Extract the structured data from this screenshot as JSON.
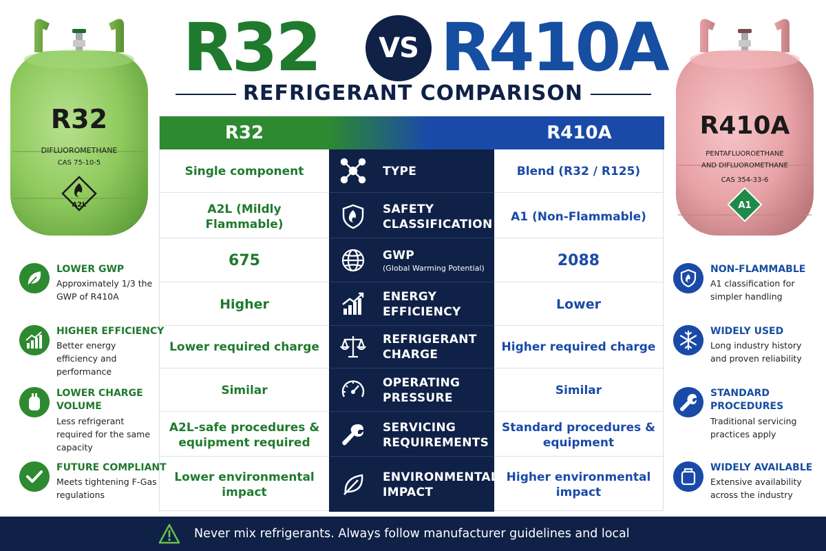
{
  "header": {
    "left_title": "R32",
    "vs": "VS",
    "right_title": "R410A",
    "subtitle": "REFRIGERANT COMPARISON"
  },
  "cylinders": {
    "left": {
      "label": "R32",
      "chemical": "DIFLUOROMETHANE",
      "cas": "CAS 75-10-5",
      "hazard": "A2L",
      "color": "#8fca5e"
    },
    "right": {
      "label": "R410A",
      "chemical_line1": "PENTAFLUOROETHANE",
      "chemical_line2": "AND DIFLUOROMETHANE",
      "cas": "CAS 354-33-6",
      "hazard": "A1",
      "color": "#e8a4a8"
    }
  },
  "table": {
    "left_header": "R32",
    "right_header": "R410A",
    "rows": [
      {
        "icon": "molecule-icon",
        "label1": "TYPE",
        "label2": "",
        "sub": "",
        "left": "Single component",
        "right": "Blend (R32 / R125)"
      },
      {
        "icon": "shield-icon",
        "label1": "SAFETY",
        "label2": "CLASSIFICATION",
        "sub": "",
        "left": "A2L (Mildly Flammable)",
        "right": "A1 (Non-Flammable)"
      },
      {
        "icon": "globe-icon",
        "label1": "GWP",
        "label2": "",
        "sub": "(Global Warming Potential)",
        "left": "675",
        "right": "2088"
      },
      {
        "icon": "bar-chart-icon",
        "label1": "ENERGY",
        "label2": "EFFICIENCY",
        "sub": "",
        "left": "Higher",
        "right": "Lower"
      },
      {
        "icon": "scale-icon",
        "label1": "REFRIGERANT",
        "label2": "CHARGE",
        "sub": "",
        "left": "Lower required charge",
        "right": "Higher required charge"
      },
      {
        "icon": "gauge-icon",
        "label1": "OPERATING",
        "label2": "PRESSURE",
        "sub": "",
        "left": "Similar",
        "right": "Similar"
      },
      {
        "icon": "wrench-icon",
        "label1": "SERVICING",
        "label2": "REQUIREMENTS",
        "sub": "",
        "left": "A2L-safe procedures & equipment required",
        "right": "Standard procedures & equipment"
      },
      {
        "icon": "leaf-icon",
        "label1": "ENVIRONMENTAL",
        "label2": "IMPACT",
        "sub": "",
        "left": "Lower environmental impact",
        "right": "Higher environmental impact"
      }
    ]
  },
  "left_features": [
    {
      "icon": "leaf-icon",
      "title": "LOWER GWP",
      "desc": "Approximately 1/3 the GWP of R410A"
    },
    {
      "icon": "bar-chart-icon",
      "title": "HIGHER EFFICIENCY",
      "desc": "Better energy efficiency and performance"
    },
    {
      "icon": "cylinder-icon",
      "title": "LOWER CHARGE VOLUME",
      "desc": "Less refrigerant required for the same capacity"
    },
    {
      "icon": "checkmark-icon",
      "title": "FUTURE COMPLIANT",
      "desc": "Meets tightening F-Gas regulations"
    }
  ],
  "right_features": [
    {
      "icon": "shield-icon",
      "title": "NON-FLAMMABLE",
      "desc": "A1 classification for simpler handling"
    },
    {
      "icon": "snowflake-icon",
      "title": "WIDELY USED",
      "desc": "Long industry history and proven reliability"
    },
    {
      "icon": "wrench-icon",
      "title": "STANDARD PROCEDURES",
      "desc": "Traditional servicing practices apply"
    },
    {
      "icon": "cylinder-icon",
      "title": "WIDELY AVAILABLE",
      "desc": "Extensive availability across the industry"
    }
  ],
  "footer": {
    "icon": "warning-icon",
    "text": "Never mix refrigerants. Always follow manufacturer guidelines and local regulations."
  },
  "colors": {
    "green": "#2d8a30",
    "blue": "#1a4aa8",
    "navy": "#0f2147"
  }
}
